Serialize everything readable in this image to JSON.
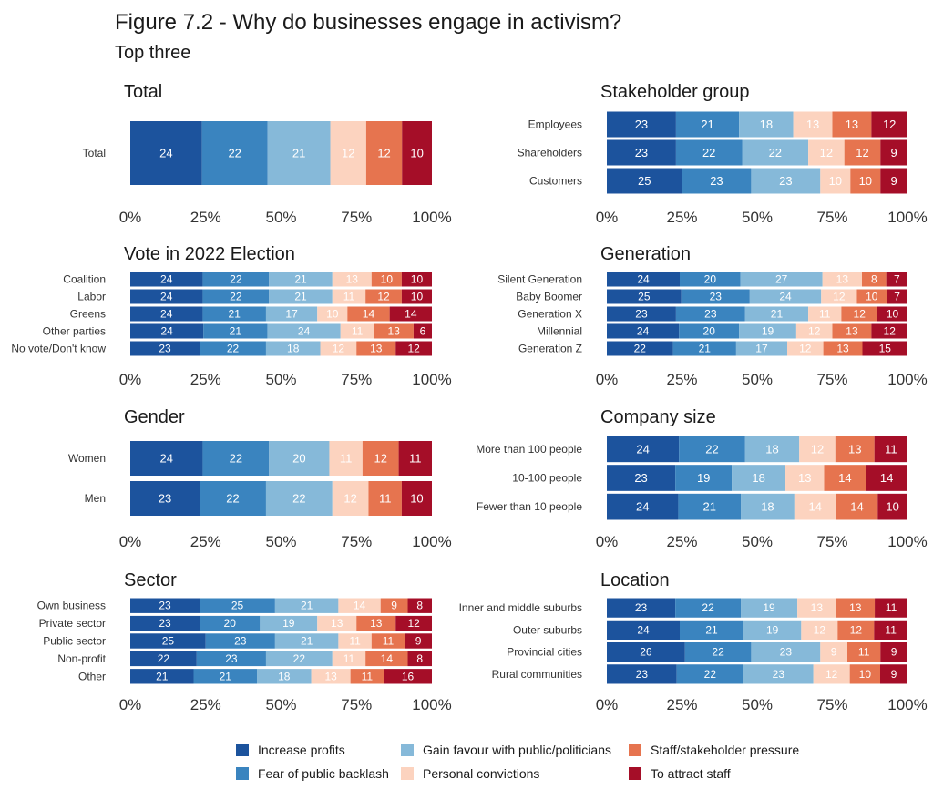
{
  "figure": {
    "title": "Figure 7.2 - Why do businesses engage in activism?",
    "subtitle": "Top three"
  },
  "colors": [
    "#1c539d",
    "#3a84bf",
    "#86b9d9",
    "#fcd3bf",
    "#e6744f",
    "#a50e28"
  ],
  "legend": {
    "items": [
      "Increase profits",
      "Fear of public backlash",
      "Gain favour with public/politicians",
      "Personal convictions",
      "Staff/stakeholder pressure",
      "To attract staff"
    ]
  },
  "chart_data": [
    {
      "type": "bar",
      "stacked": "horizontal",
      "title": "Total",
      "x_ticks": [
        "0%",
        "25%",
        "50%",
        "75%",
        "100%"
      ],
      "xlim": [
        0,
        100
      ],
      "categories": [
        "Total"
      ],
      "series_values": [
        [
          24,
          22,
          21,
          12,
          12,
          10
        ]
      ]
    },
    {
      "type": "bar",
      "stacked": "horizontal",
      "title": "Stakeholder group",
      "x_ticks": [
        "0%",
        "25%",
        "50%",
        "75%",
        "100%"
      ],
      "xlim": [
        0,
        100
      ],
      "categories": [
        "Employees",
        "Shareholders",
        "Customers"
      ],
      "series_values": [
        [
          23,
          21,
          18,
          13,
          13,
          12
        ],
        [
          23,
          22,
          22,
          12,
          12,
          9
        ],
        [
          25,
          23,
          23,
          10,
          10,
          9
        ]
      ]
    },
    {
      "type": "bar",
      "stacked": "horizontal",
      "title": "Vote in 2022 Election",
      "x_ticks": [
        "0%",
        "25%",
        "50%",
        "75%",
        "100%"
      ],
      "xlim": [
        0,
        100
      ],
      "categories": [
        "Coalition",
        "Labor",
        "Greens",
        "Other parties",
        "No vote/Don't know"
      ],
      "series_values": [
        [
          24,
          22,
          21,
          13,
          10,
          10
        ],
        [
          24,
          22,
          21,
          11,
          12,
          10
        ],
        [
          24,
          21,
          17,
          10,
          14,
          14
        ],
        [
          24,
          21,
          24,
          11,
          13,
          6
        ],
        [
          23,
          22,
          18,
          12,
          13,
          12
        ]
      ]
    },
    {
      "type": "bar",
      "stacked": "horizontal",
      "title": "Generation",
      "x_ticks": [
        "0%",
        "25%",
        "50%",
        "75%",
        "100%"
      ],
      "xlim": [
        0,
        100
      ],
      "categories": [
        "Silent Generation",
        "Baby Boomer",
        "Generation X",
        "Millennial",
        "Generation Z"
      ],
      "series_values": [
        [
          24,
          20,
          27,
          13,
          8,
          7
        ],
        [
          25,
          23,
          24,
          12,
          10,
          7
        ],
        [
          23,
          23,
          21,
          11,
          12,
          10
        ],
        [
          24,
          20,
          19,
          12,
          13,
          12
        ],
        [
          22,
          21,
          17,
          12,
          13,
          15
        ]
      ]
    },
    {
      "type": "bar",
      "stacked": "horizontal",
      "title": "Gender",
      "x_ticks": [
        "0%",
        "25%",
        "50%",
        "75%",
        "100%"
      ],
      "xlim": [
        0,
        100
      ],
      "categories": [
        "Women",
        "Men"
      ],
      "series_values": [
        [
          24,
          22,
          20,
          11,
          12,
          11
        ],
        [
          23,
          22,
          22,
          12,
          11,
          10
        ]
      ]
    },
    {
      "type": "bar",
      "stacked": "horizontal",
      "title": "Company size",
      "x_ticks": [
        "0%",
        "25%",
        "50%",
        "75%",
        "100%"
      ],
      "xlim": [
        0,
        100
      ],
      "categories": [
        "More than 100 people",
        "10-100 people",
        "Fewer than 10 people"
      ],
      "series_values": [
        [
          24,
          22,
          18,
          12,
          13,
          11
        ],
        [
          23,
          19,
          18,
          13,
          14,
          14
        ],
        [
          24,
          21,
          18,
          14,
          14,
          10
        ]
      ]
    },
    {
      "type": "bar",
      "stacked": "horizontal",
      "title": "Sector",
      "x_ticks": [
        "0%",
        "25%",
        "50%",
        "75%",
        "100%"
      ],
      "xlim": [
        0,
        100
      ],
      "categories": [
        "Own business",
        "Private sector",
        "Public sector",
        "Non-profit",
        "Other"
      ],
      "series_values": [
        [
          23,
          25,
          21,
          14,
          9,
          8
        ],
        [
          23,
          20,
          19,
          13,
          13,
          12
        ],
        [
          25,
          23,
          21,
          11,
          11,
          9
        ],
        [
          22,
          23,
          22,
          11,
          14,
          8
        ],
        [
          21,
          21,
          18,
          13,
          11,
          16
        ]
      ]
    },
    {
      "type": "bar",
      "stacked": "horizontal",
      "title": "Location",
      "x_ticks": [
        "0%",
        "25%",
        "50%",
        "75%",
        "100%"
      ],
      "xlim": [
        0,
        100
      ],
      "categories": [
        "Inner and middle suburbs",
        "Outer suburbs",
        "Provincial cities",
        "Rural communities"
      ],
      "series_values": [
        [
          23,
          22,
          19,
          13,
          13,
          11
        ],
        [
          24,
          21,
          19,
          12,
          12,
          11
        ],
        [
          26,
          22,
          23,
          9,
          11,
          9
        ],
        [
          23,
          22,
          23,
          12,
          10,
          9
        ]
      ]
    }
  ]
}
